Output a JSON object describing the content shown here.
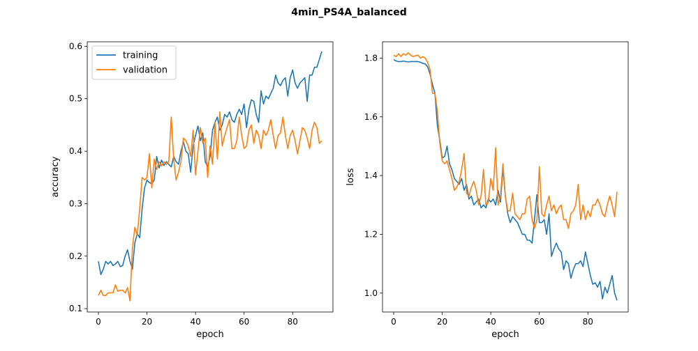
{
  "figure": {
    "title": "4min_PS4A_balanced"
  },
  "colors": {
    "training": "#1f77b4",
    "validation": "#ff7f0e"
  },
  "chart_data": [
    {
      "type": "line",
      "xlabel": "epoch",
      "ylabel": "accuracy",
      "xlim": [
        -4.6,
        96.6
      ],
      "ylim": [
        0.0935,
        0.6085
      ],
      "xticks": [
        0,
        20,
        40,
        60,
        80
      ],
      "yticks": [
        0.1,
        0.2,
        0.3,
        0.4,
        0.5,
        0.6
      ],
      "tick_labels_x": [
        "0",
        "20",
        "40",
        "60",
        "80"
      ],
      "tick_labels_y": [
        "0.1",
        "0.2",
        "0.3",
        "0.4",
        "0.5",
        "0.6"
      ],
      "legend": {
        "placement": "upper-left",
        "entries": [
          "training",
          "validation"
        ]
      },
      "series": [
        {
          "name": "training",
          "x": [
            0,
            1,
            2,
            3,
            4,
            5,
            6,
            7,
            8,
            9,
            10,
            11,
            12,
            13,
            14,
            15,
            16,
            17,
            18,
            19,
            20,
            21,
            22,
            23,
            24,
            25,
            26,
            27,
            28,
            29,
            30,
            31,
            32,
            33,
            34,
            35,
            36,
            37,
            38,
            39,
            40,
            41,
            42,
            43,
            44,
            45,
            46,
            47,
            48,
            49,
            50,
            51,
            52,
            53,
            54,
            55,
            56,
            57,
            58,
            59,
            60,
            61,
            62,
            63,
            64,
            65,
            66,
            67,
            68,
            69,
            70,
            71,
            72,
            73,
            74,
            75,
            76,
            77,
            78,
            79,
            80,
            81,
            82,
            83,
            84,
            85,
            86,
            87,
            88,
            89,
            90,
            91,
            92
          ],
          "values": [
            0.19,
            0.165,
            0.175,
            0.19,
            0.185,
            0.19,
            0.182,
            0.185,
            0.19,
            0.18,
            0.182,
            0.2,
            0.212,
            0.19,
            0.175,
            0.225,
            0.243,
            0.235,
            0.29,
            0.33,
            0.345,
            0.34,
            0.338,
            0.345,
            0.39,
            0.368,
            0.383,
            0.373,
            0.38,
            0.375,
            0.37,
            0.39,
            0.38,
            0.375,
            0.4,
            0.418,
            0.4,
            0.395,
            0.36,
            0.41,
            0.43,
            0.448,
            0.42,
            0.435,
            0.38,
            0.37,
            0.39,
            0.44,
            0.455,
            0.465,
            0.44,
            0.45,
            0.47,
            0.465,
            0.475,
            0.46,
            0.455,
            0.47,
            0.48,
            0.47,
            0.49,
            0.445,
            0.48,
            0.498,
            0.495,
            0.47,
            0.455,
            0.515,
            0.49,
            0.505,
            0.5,
            0.51,
            0.52,
            0.545,
            0.53,
            0.525,
            0.535,
            0.54,
            0.505,
            0.54,
            0.555,
            0.53,
            0.52,
            0.53,
            0.535,
            0.54,
            0.495,
            0.545,
            0.545,
            0.56,
            0.56,
            0.575,
            0.59
          ]
        },
        {
          "name": "validation",
          "x": [
            0,
            1,
            2,
            3,
            4,
            5,
            6,
            7,
            8,
            9,
            10,
            11,
            12,
            13,
            14,
            15,
            16,
            17,
            18,
            19,
            20,
            21,
            22,
            23,
            24,
            25,
            26,
            27,
            28,
            29,
            30,
            31,
            32,
            33,
            34,
            35,
            36,
            37,
            38,
            39,
            40,
            41,
            42,
            43,
            44,
            45,
            46,
            47,
            48,
            49,
            50,
            51,
            52,
            53,
            54,
            55,
            56,
            57,
            58,
            59,
            60,
            61,
            62,
            63,
            64,
            65,
            66,
            67,
            68,
            69,
            70,
            71,
            72,
            73,
            74,
            75,
            76,
            77,
            78,
            79,
            80,
            81,
            82,
            83,
            84,
            85,
            86,
            87,
            88,
            89,
            90,
            91,
            92
          ],
          "values": [
            0.125,
            0.135,
            0.125,
            0.125,
            0.13,
            0.13,
            0.13,
            0.145,
            0.133,
            0.135,
            0.135,
            0.13,
            0.14,
            0.115,
            0.215,
            0.255,
            0.24,
            0.29,
            0.35,
            0.345,
            0.35,
            0.395,
            0.33,
            0.385,
            0.365,
            0.38,
            0.372,
            0.38,
            0.375,
            0.38,
            0.465,
            0.385,
            0.345,
            0.36,
            0.38,
            0.425,
            0.42,
            0.41,
            0.39,
            0.44,
            0.355,
            0.4,
            0.445,
            0.415,
            0.425,
            0.35,
            0.41,
            0.375,
            0.455,
            0.385,
            0.475,
            0.41,
            0.43,
            0.445,
            0.46,
            0.405,
            0.405,
            0.42,
            0.465,
            0.43,
            0.405,
            0.41,
            0.44,
            0.45,
            0.415,
            0.44,
            0.43,
            0.405,
            0.44,
            0.43,
            0.44,
            0.46,
            0.43,
            0.405,
            0.43,
            0.435,
            0.465,
            0.43,
            0.405,
            0.43,
            0.44,
            0.42,
            0.395,
            0.42,
            0.445,
            0.44,
            0.425,
            0.405,
            0.44,
            0.455,
            0.445,
            0.415,
            0.42
          ]
        }
      ]
    },
    {
      "type": "line",
      "xlabel": "epoch",
      "ylabel": "loss",
      "xlim": [
        -4.6,
        96.6
      ],
      "ylim": [
        0.9355,
        1.8555
      ],
      "xticks": [
        0,
        20,
        40,
        60,
        80
      ],
      "yticks": [
        1.0,
        1.2,
        1.4,
        1.6,
        1.8
      ],
      "tick_labels_x": [
        "0",
        "20",
        "40",
        "60",
        "80"
      ],
      "tick_labels_y": [
        "1.0",
        "1.2",
        "1.4",
        "1.6",
        "1.8"
      ],
      "series": [
        {
          "name": "training",
          "x": [
            0,
            1,
            2,
            3,
            4,
            5,
            6,
            7,
            8,
            9,
            10,
            11,
            12,
            13,
            14,
            15,
            16,
            17,
            18,
            19,
            20,
            21,
            22,
            23,
            24,
            25,
            26,
            27,
            28,
            29,
            30,
            31,
            32,
            33,
            34,
            35,
            36,
            37,
            38,
            39,
            40,
            41,
            42,
            43,
            44,
            45,
            46,
            47,
            48,
            49,
            50,
            51,
            52,
            53,
            54,
            55,
            56,
            57,
            58,
            59,
            60,
            61,
            62,
            63,
            64,
            65,
            66,
            67,
            68,
            69,
            70,
            71,
            72,
            73,
            74,
            75,
            76,
            77,
            78,
            79,
            80,
            81,
            82,
            83,
            84,
            85,
            86,
            87,
            88,
            89,
            90,
            91,
            92
          ],
          "values": [
            1.795,
            1.79,
            1.788,
            1.788,
            1.79,
            1.788,
            1.787,
            1.788,
            1.788,
            1.788,
            1.788,
            1.786,
            1.782,
            1.78,
            1.77,
            1.745,
            1.71,
            1.68,
            1.57,
            1.52,
            1.46,
            1.465,
            1.5,
            1.44,
            1.42,
            1.39,
            1.38,
            1.37,
            1.39,
            1.35,
            1.37,
            1.32,
            1.33,
            1.3,
            1.31,
            1.32,
            1.29,
            1.3,
            1.29,
            1.32,
            1.31,
            1.32,
            1.3,
            1.35,
            1.31,
            1.425,
            1.33,
            1.27,
            1.24,
            1.26,
            1.25,
            1.24,
            1.22,
            1.2,
            1.2,
            1.18,
            1.18,
            1.17,
            1.25,
            1.335,
            1.24,
            1.24,
            1.25,
            1.2,
            1.27,
            1.125,
            1.15,
            1.17,
            1.15,
            1.14,
            1.08,
            1.11,
            1.1,
            1.05,
            1.08,
            1.1,
            1.1,
            1.11,
            1.09,
            1.14,
            1.1,
            1.06,
            1.03,
            1.035,
            1.02,
            1.04,
            0.98,
            1.02,
            1.0,
            1.03,
            1.06,
            1.0,
            0.975
          ]
        },
        {
          "name": "validation",
          "x": [
            0,
            1,
            2,
            3,
            4,
            5,
            6,
            7,
            8,
            9,
            10,
            11,
            12,
            13,
            14,
            15,
            16,
            17,
            18,
            19,
            20,
            21,
            22,
            23,
            24,
            25,
            26,
            27,
            28,
            29,
            30,
            31,
            32,
            33,
            34,
            35,
            36,
            37,
            38,
            39,
            40,
            41,
            42,
            43,
            44,
            45,
            46,
            47,
            48,
            49,
            50,
            51,
            52,
            53,
            54,
            55,
            56,
            57,
            58,
            59,
            60,
            61,
            62,
            63,
            64,
            65,
            66,
            67,
            68,
            69,
            70,
            71,
            72,
            73,
            74,
            75,
            76,
            77,
            78,
            79,
            80,
            81,
            82,
            83,
            84,
            85,
            86,
            87,
            88,
            89,
            90,
            91,
            92
          ],
          "values": [
            1.81,
            1.805,
            1.815,
            1.805,
            1.815,
            1.81,
            1.818,
            1.81,
            1.805,
            1.808,
            1.81,
            1.8,
            1.805,
            1.8,
            1.785,
            1.76,
            1.68,
            1.68,
            1.62,
            1.51,
            1.45,
            1.44,
            1.45,
            1.42,
            1.39,
            1.35,
            1.36,
            1.38,
            1.42,
            1.475,
            1.34,
            1.33,
            1.36,
            1.38,
            1.35,
            1.3,
            1.33,
            1.42,
            1.3,
            1.31,
            1.39,
            1.35,
            1.495,
            1.3,
            1.33,
            1.44,
            1.33,
            1.28,
            1.28,
            1.34,
            1.27,
            1.26,
            1.25,
            1.27,
            1.27,
            1.32,
            1.33,
            1.25,
            1.22,
            1.25,
            1.43,
            1.27,
            1.26,
            1.3,
            1.33,
            1.28,
            1.3,
            1.27,
            1.29,
            1.3,
            1.25,
            1.25,
            1.22,
            1.27,
            1.28,
            1.3,
            1.37,
            1.25,
            1.3,
            1.25,
            1.28,
            1.26,
            1.3,
            1.3,
            1.32,
            1.3,
            1.27,
            1.26,
            1.3,
            1.33,
            1.3,
            1.26,
            1.345
          ]
        }
      ]
    }
  ]
}
